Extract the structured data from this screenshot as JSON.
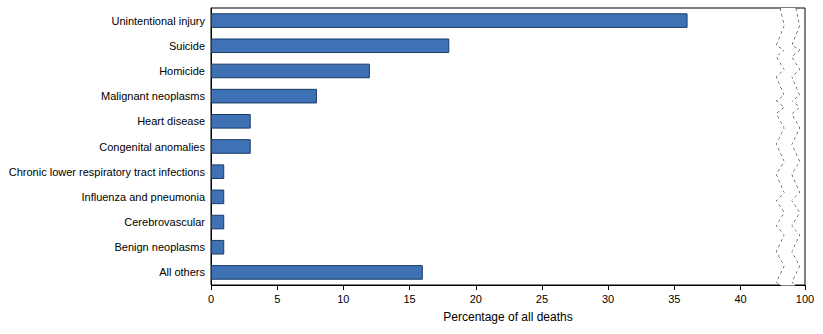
{
  "chart_data": {
    "type": "bar",
    "orientation": "horizontal",
    "categories": [
      "Unintentional injury",
      "Suicide",
      "Homicide",
      "Malignant neoplasms",
      "Heart disease",
      "Congenital anomalies",
      "Chronic lower respiratory tract infections",
      "Influenza and pneumonia",
      "Cerebrovascular",
      "Benign neoplasms",
      "All others"
    ],
    "values": [
      36,
      18,
      12,
      8,
      3,
      3,
      1,
      1,
      1,
      1,
      16
    ],
    "color": "#3f72b5",
    "xlabel": "Percentage of all deaths",
    "xlim": [
      0,
      100
    ],
    "xticks": [
      0,
      5,
      10,
      15,
      20,
      25,
      30,
      35,
      40,
      100
    ],
    "grid": false
  }
}
